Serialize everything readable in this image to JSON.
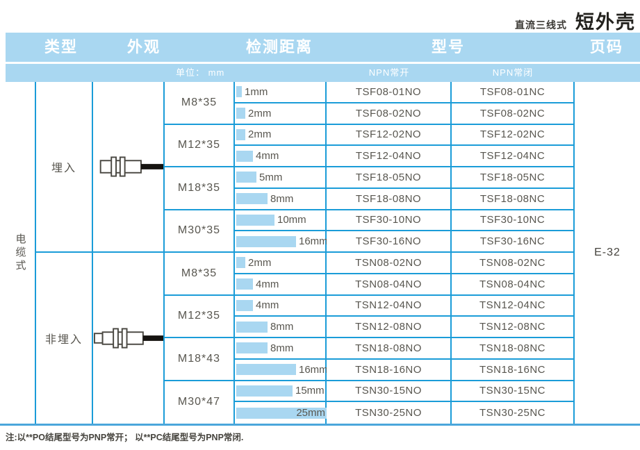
{
  "page_header": {
    "series_label": "直流三线式",
    "title": "短外壳"
  },
  "colors": {
    "header_blue": "#a9d7f1",
    "grid_blue": "#1a9cd8",
    "bar_blue": "#a9d7f1",
    "rule_blue": "#4ba6db"
  },
  "table": {
    "columns": {
      "type": "类型",
      "appearance": "外观",
      "distance": "检测距离",
      "model": "型号",
      "page": "页码"
    },
    "subheader": {
      "unit": "单位： mm",
      "npn_no": "NPN常开",
      "npn_nc": "NPN常闭"
    },
    "mount_type": "电缆式",
    "page_code": "E-32",
    "sections": [
      {
        "type_label": "埋入",
        "sensor": "flush-cable-sensor",
        "size_groups": [
          {
            "size": "M8*35",
            "rows": [
              {
                "distance_mm": 1,
                "distance_label": "1mm",
                "npn_no": "TSF08-01NO",
                "npn_nc": "TSF08-01NC"
              },
              {
                "distance_mm": 2,
                "distance_label": "2mm",
                "npn_no": "TSF08-02NO",
                "npn_nc": "TSF08-02NC"
              }
            ]
          },
          {
            "size": "M12*35",
            "rows": [
              {
                "distance_mm": 2,
                "distance_label": "2mm",
                "npn_no": "TSF12-02NO",
                "npn_nc": "TSF12-02NC"
              },
              {
                "distance_mm": 4,
                "distance_label": "4mm",
                "npn_no": "TSF12-04NO",
                "npn_nc": "TSF12-04NC"
              }
            ]
          },
          {
            "size": "M18*35",
            "rows": [
              {
                "distance_mm": 5,
                "distance_label": "5mm",
                "npn_no": "TSF18-05NO",
                "npn_nc": "TSF18-05NC"
              },
              {
                "distance_mm": 8,
                "distance_label": "8mm",
                "npn_no": "TSF18-08NO",
                "npn_nc": "TSF18-08NC"
              }
            ]
          },
          {
            "size": "M30*35",
            "rows": [
              {
                "distance_mm": 10,
                "distance_label": "10mm",
                "npn_no": "TSF30-10NO",
                "npn_nc": "TSF30-10NC"
              },
              {
                "distance_mm": 16,
                "distance_label": "16mm",
                "npn_no": "TSF30-16NO",
                "npn_nc": "TSF30-16NC"
              }
            ]
          }
        ]
      },
      {
        "type_label": "非埋入",
        "sensor": "non-flush-cable-sensor",
        "size_groups": [
          {
            "size": "M8*35",
            "rows": [
              {
                "distance_mm": 2,
                "distance_label": "2mm",
                "npn_no": "TSN08-02NO",
                "npn_nc": "TSN08-02NC"
              },
              {
                "distance_mm": 4,
                "distance_label": "4mm",
                "npn_no": "TSN08-04NO",
                "npn_nc": "TSN08-04NC"
              }
            ]
          },
          {
            "size": "M12*35",
            "rows": [
              {
                "distance_mm": 4,
                "distance_label": "4mm",
                "npn_no": "TSN12-04NO",
                "npn_nc": "TSN12-04NC"
              },
              {
                "distance_mm": 8,
                "distance_label": "8mm",
                "npn_no": "TSN12-08NO",
                "npn_nc": "TSN12-08NC"
              }
            ]
          },
          {
            "size": "M18*43",
            "rows": [
              {
                "distance_mm": 8,
                "distance_label": "8mm",
                "npn_no": "TSN18-08NO",
                "npn_nc": "TSN18-08NC"
              },
              {
                "distance_mm": 16,
                "distance_label": "16mm",
                "npn_no": "TSN18-16NO",
                "npn_nc": "TSN18-16NC"
              }
            ]
          },
          {
            "size": "M30*47",
            "rows": [
              {
                "distance_mm": 15,
                "distance_label": "15mm",
                "npn_no": "TSN30-15NO",
                "npn_nc": "TSN30-15NC"
              },
              {
                "distance_mm": 25,
                "distance_label": "25mm",
                "npn_no": "TSN30-25NO",
                "npn_nc": "TSN30-25NC"
              }
            ]
          }
        ]
      }
    ]
  },
  "footnote": "注:以**PO结尾型号为PNP常开； 以**PC结尾型号为PNP常闭."
}
